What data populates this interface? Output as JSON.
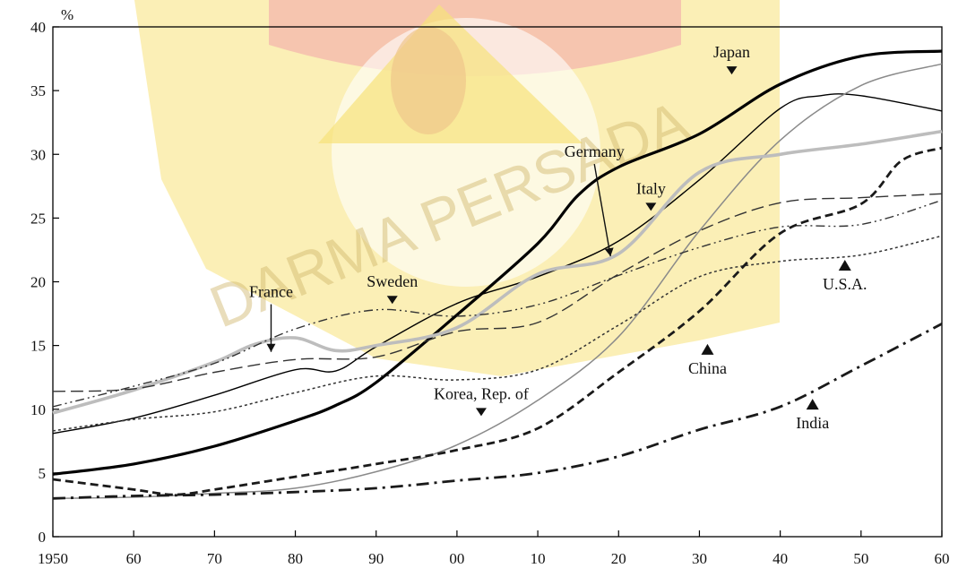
{
  "watermark": {
    "text": "DARMA PERSADA",
    "colors": {
      "yellow": "#f7e27a",
      "red": "#f3b3ad",
      "orange": "#f0c68a"
    }
  },
  "chart_data": {
    "type": "line",
    "ylabel": "%",
    "xlim": [
      1950,
      2060
    ],
    "ylim": [
      0,
      40
    ],
    "x_tick_labels": [
      "1950",
      "60",
      "70",
      "80",
      "90",
      "00",
      "10",
      "20",
      "30",
      "40",
      "50",
      "60"
    ],
    "y_tick_labels": [
      "0",
      "5",
      "10",
      "15",
      "20",
      "25",
      "30",
      "35",
      "40"
    ],
    "grid": false,
    "series": [
      {
        "name": "Japan",
        "style": "solid-thick",
        "color": "#000000",
        "x": [
          1950,
          1960,
          1970,
          1980,
          1985,
          1990,
          2000,
          2010,
          2015,
          2020,
          2030,
          2040,
          2050,
          2060
        ],
        "y": [
          4.9,
          5.7,
          7.1,
          9.1,
          10.3,
          12.1,
          17.4,
          23.0,
          26.8,
          29.0,
          31.6,
          35.5,
          37.7,
          38.1
        ]
      },
      {
        "name": "Italy",
        "style": "solid-thin",
        "color": "#000000",
        "x": [
          1950,
          1960,
          1970,
          1980,
          1985,
          1990,
          2000,
          2010,
          2020,
          2030,
          2040,
          2045,
          2050,
          2060
        ],
        "y": [
          8.1,
          9.3,
          11.1,
          13.1,
          13.0,
          14.9,
          18.3,
          20.4,
          23.2,
          28.0,
          33.6,
          34.6,
          34.6,
          33.4
        ]
      },
      {
        "name": "Korea, Rep. of",
        "style": "solid-thin-gray",
        "color": "#8a8a8a",
        "x": [
          1950,
          1960,
          1970,
          1980,
          1990,
          2000,
          2010,
          2020,
          2030,
          2040,
          2050,
          2060
        ],
        "y": [
          3.0,
          3.1,
          3.4,
          3.8,
          5.1,
          7.2,
          10.7,
          15.7,
          24.0,
          31.1,
          35.4,
          37.1
        ]
      },
      {
        "name": "Germany",
        "style": "gray-thick",
        "color": "#bdbdbd",
        "x": [
          1950,
          1960,
          1970,
          1975,
          1980,
          1985,
          1990,
          2000,
          2010,
          2020,
          2030,
          2040,
          2050,
          2060
        ],
        "y": [
          9.7,
          11.5,
          13.7,
          15.1,
          15.6,
          14.6,
          15.0,
          16.4,
          20.6,
          22.2,
          28.6,
          30.0,
          30.8,
          31.8
        ]
      },
      {
        "name": "France",
        "style": "long-dash",
        "color": "#333333",
        "x": [
          1950,
          1960,
          1970,
          1980,
          1990,
          2000,
          2010,
          2020,
          2030,
          2040,
          2050,
          2060
        ],
        "y": [
          11.4,
          11.6,
          12.9,
          13.9,
          14.1,
          16.1,
          16.8,
          20.6,
          24.0,
          26.2,
          26.6,
          26.9
        ]
      },
      {
        "name": "Sweden",
        "style": "dash-dot-dot",
        "color": "#333333",
        "x": [
          1950,
          1960,
          1970,
          1980,
          1990,
          2000,
          2010,
          2020,
          2030,
          2040,
          2050,
          2060
        ],
        "y": [
          10.2,
          11.8,
          13.6,
          16.3,
          17.8,
          17.3,
          18.2,
          20.5,
          22.7,
          24.3,
          24.5,
          26.4
        ]
      },
      {
        "name": "U.S.A.",
        "style": "dotted",
        "color": "#333333",
        "x": [
          1950,
          1960,
          1970,
          1980,
          1990,
          2000,
          2010,
          2020,
          2030,
          2040,
          2050,
          2060
        ],
        "y": [
          8.3,
          9.2,
          9.8,
          11.3,
          12.6,
          12.3,
          13.1,
          16.6,
          20.4,
          21.6,
          22.1,
          23.6
        ]
      },
      {
        "name": "China",
        "style": "dash-thick",
        "color": "#1a1a1a",
        "x": [
          1950,
          1960,
          1965,
          1970,
          1980,
          1990,
          2000,
          2010,
          2020,
          2030,
          2040,
          2050,
          2055,
          2060
        ],
        "y": [
          4.5,
          3.7,
          3.3,
          3.7,
          4.7,
          5.7,
          6.8,
          8.5,
          12.9,
          17.7,
          23.8,
          26.1,
          29.5,
          30.5
        ]
      },
      {
        "name": "India",
        "style": "dash-dot-thick",
        "color": "#1a1a1a",
        "x": [
          1950,
          1960,
          1970,
          1980,
          1990,
          2000,
          2010,
          2020,
          2030,
          2040,
          2050,
          2060
        ],
        "y": [
          3.0,
          3.2,
          3.3,
          3.5,
          3.8,
          4.4,
          5.0,
          6.3,
          8.4,
          10.2,
          13.4,
          16.7
        ]
      }
    ],
    "annotations": [
      {
        "text": "Japan",
        "marker": "down",
        "x": 2034,
        "y": 37.6
      },
      {
        "text": "Germany",
        "marker": "arrow",
        "x": 2017,
        "y": 29.8,
        "arrow_to": [
          2019,
          22.0
        ]
      },
      {
        "text": "Italy",
        "marker": "down",
        "x": 2024,
        "y": 26.9
      },
      {
        "text": "Sweden",
        "marker": "down",
        "x": 1992,
        "y": 19.6
      },
      {
        "text": "France",
        "marker": "arrow",
        "x": 1977,
        "y": 18.8,
        "arrow_to": [
          1977,
          14.5
        ]
      },
      {
        "text": "U.S.A.",
        "marker": "up",
        "x": 2048,
        "y": 19.4
      },
      {
        "text": "China",
        "marker": "up",
        "x": 2031,
        "y": 12.8
      },
      {
        "text": "Korea, Rep. of",
        "marker": "down",
        "x": 2003,
        "y": 10.8
      },
      {
        "text": "India",
        "marker": "up",
        "x": 2044,
        "y": 8.5
      }
    ]
  }
}
